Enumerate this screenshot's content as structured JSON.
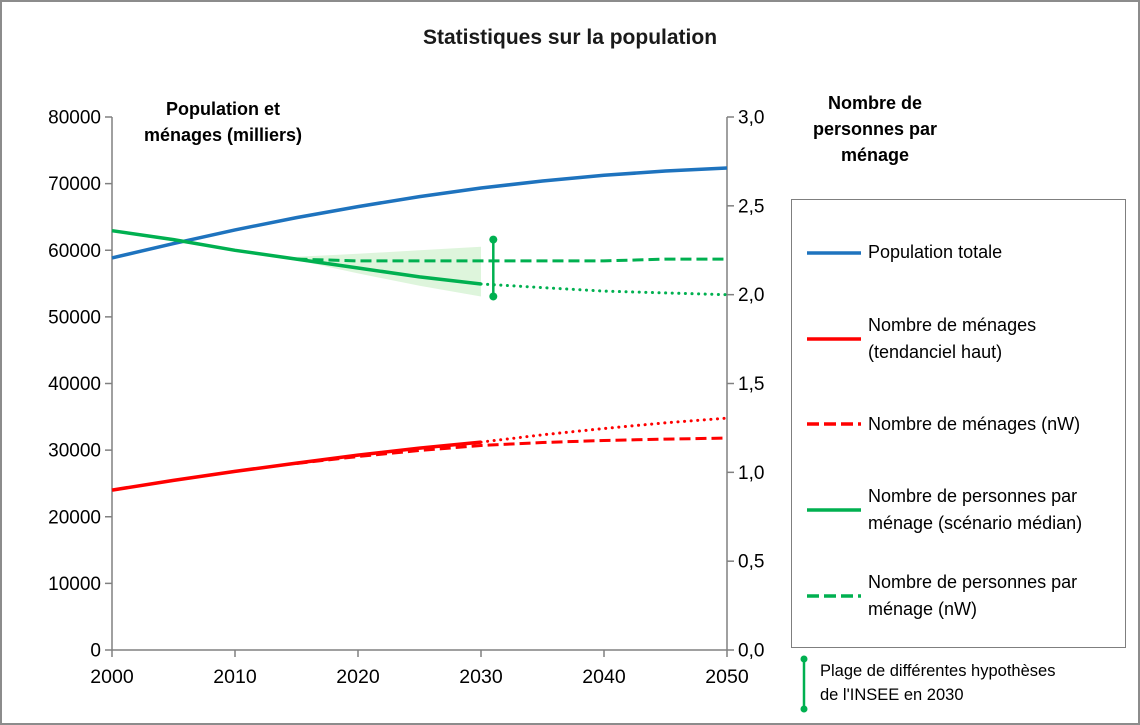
{
  "chart_data": {
    "type": "line",
    "title": "Statistiques sur la population",
    "x_axis": {
      "min": 2000,
      "max": 2050,
      "step": 10,
      "tick_labels": [
        "2000",
        "2010",
        "2020",
        "2030",
        "2040",
        "2050"
      ]
    },
    "left_axis": {
      "label": "Population et ménages (milliers)",
      "min": 0,
      "max": 80000,
      "step": 10000,
      "tick_labels": [
        "0",
        "10000",
        "20000",
        "30000",
        "40000",
        "50000",
        "60000",
        "70000",
        "80000"
      ]
    },
    "right_axis": {
      "label": "Nombre de personnes par ménage",
      "min": 0,
      "max": 3,
      "step": 0.5,
      "tick_labels": [
        "0,0",
        "0,5",
        "1,0",
        "1,5",
        "2,0",
        "2,5",
        "3,0"
      ]
    },
    "series": [
      {
        "name": "Population totale",
        "axis": "left",
        "color": "#1E73BE",
        "dash": "solid",
        "width": 3.5,
        "x": [
          2000,
          2005,
          2010,
          2015,
          2020,
          2025,
          2030,
          2035,
          2040,
          2045,
          2050
        ],
        "y": [
          58850,
          61000,
          63050,
          64900,
          66550,
          68050,
          69350,
          70400,
          71250,
          71900,
          72350
        ]
      },
      {
        "name": "Nombre de ménages (tendanciel haut)",
        "axis": "left",
        "color": "#FF0000",
        "dash": "solid",
        "width": 3.5,
        "x": [
          2000,
          2005,
          2010,
          2015,
          2020,
          2025,
          2030
        ],
        "y": [
          24000,
          25450,
          26800,
          28050,
          29250,
          30300,
          31200
        ]
      },
      {
        "name": "Nombre de ménages (tendanciel haut) projection",
        "axis": "left",
        "color": "#FF0000",
        "dash": "dotted",
        "width": 3,
        "x": [
          2030,
          2035,
          2040,
          2045,
          2050
        ],
        "y": [
          31200,
          32300,
          33250,
          34100,
          34800
        ]
      },
      {
        "name": "Nombre de ménages (nW)",
        "axis": "left",
        "color": "#FF0000",
        "dash": "dashed",
        "width": 3,
        "x": [
          2015,
          2020,
          2025,
          2030,
          2035,
          2040,
          2045,
          2050
        ],
        "y": [
          28000,
          29050,
          29950,
          30700,
          31150,
          31450,
          31650,
          31800
        ]
      },
      {
        "name": "Nombre de personnes par ménage (scénario médian)",
        "axis": "right",
        "color": "#00B050",
        "dash": "solid",
        "width": 3.5,
        "x": [
          2000,
          2005,
          2010,
          2015,
          2020,
          2025,
          2030
        ],
        "y": [
          2.36,
          2.31,
          2.25,
          2.2,
          2.15,
          2.1,
          2.06
        ]
      },
      {
        "name": "Nombre de personnes par ménage (scénario médian) projection",
        "axis": "right",
        "color": "#00B050",
        "dash": "dotted",
        "width": 3,
        "x": [
          2030,
          2035,
          2040,
          2045,
          2050
        ],
        "y": [
          2.06,
          2.04,
          2.02,
          2.01,
          2.0
        ]
      },
      {
        "name": "Nombre de personnes par ménage (nW)",
        "axis": "right",
        "color": "#00B050",
        "dash": "dashed",
        "width": 3,
        "x": [
          2015,
          2020,
          2025,
          2030,
          2035,
          2040,
          2045,
          2050
        ],
        "y": [
          2.2,
          2.19,
          2.19,
          2.19,
          2.19,
          2.19,
          2.2,
          2.2
        ]
      }
    ],
    "uncertainty_band": {
      "axis": "right",
      "color": "#C8EFC4",
      "x": [
        2014,
        2020,
        2025,
        2030
      ],
      "upper": [
        2.21,
        2.23,
        2.25,
        2.27
      ],
      "lower": [
        2.21,
        2.12,
        2.05,
        1.99
      ]
    },
    "error_bar": {
      "name": "Plage de différentes hypothèses de l'INSEE en 2030",
      "axis": "right",
      "x": 2031,
      "low": 1.99,
      "high": 2.31,
      "color": "#00B050"
    }
  },
  "legend": {
    "items": [
      {
        "label": "Population totale",
        "color": "#1E73BE",
        "dash": "solid"
      },
      {
        "label": "Nombre de ménages (tendanciel haut)",
        "color": "#FF0000",
        "dash": "solid"
      },
      {
        "label": "Nombre de ménages (nW)",
        "color": "#FF0000",
        "dash": "dashed"
      },
      {
        "label": "Nombre de personnes par ménage (scénario médian)",
        "color": "#00B050",
        "dash": "solid"
      },
      {
        "label": "Nombre de personnes par ménage (nW)",
        "color": "#00B050",
        "dash": "dashed"
      }
    ],
    "plage": {
      "label": "Plage de différentes hypothèses de l'INSEE en 2030",
      "color": "#00B050"
    }
  },
  "colors": {
    "axis": "#808080",
    "frame_border": "#8c8c8c",
    "text": "#000000"
  }
}
